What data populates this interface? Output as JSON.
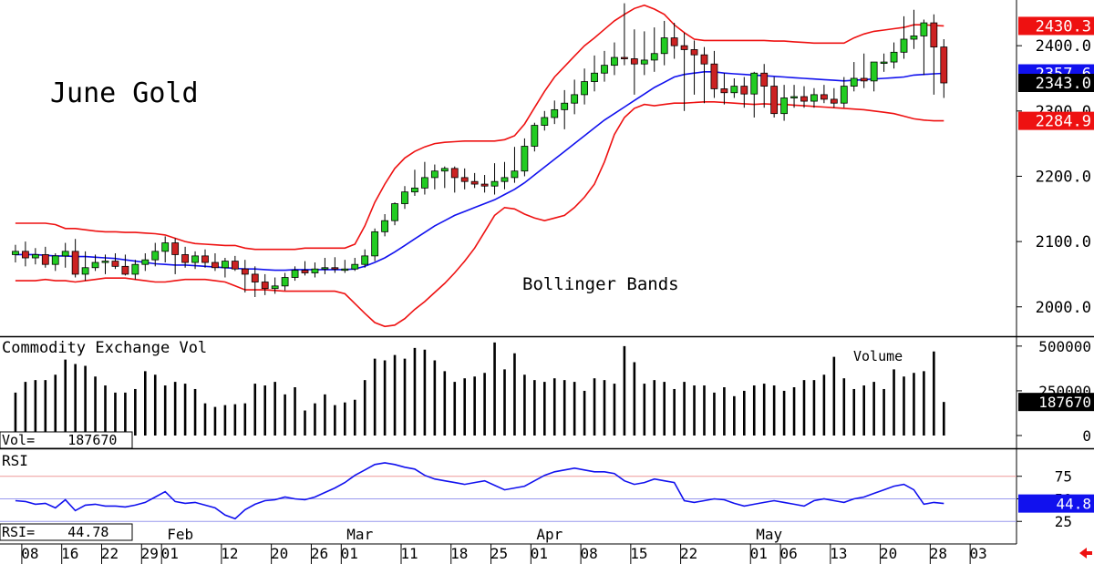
{
  "colors": {
    "up": "#22cc22",
    "down": "#cc2222",
    "band": "#ee1111",
    "ma": "#1111ee",
    "rsi": "#1111ee",
    "axis": "#000000",
    "ref75": "#ee9999",
    "ref50": "#9999ee",
    "ref25": "#9999ee"
  },
  "price_panel": {
    "title": "June Gold",
    "annotation": "Bollinger Bands",
    "yticks": [
      "2000.0",
      "2100.0",
      "2200.0",
      "2300.0",
      "2400.0"
    ],
    "ytick_values": [
      2000,
      2100,
      2200,
      2300,
      2400
    ],
    "tags": [
      {
        "text": "2430.3",
        "value": 2430.3,
        "bg": "#ee1111",
        "fg": "#ffffff"
      },
      {
        "text": "2357.6",
        "value": 2357.6,
        "bg": "#1111ee",
        "fg": "#ffffff"
      },
      {
        "text": "2343.0",
        "value": 2343.0,
        "bg": "#000000",
        "fg": "#ffffff"
      },
      {
        "text": "2284.9",
        "value": 2284.9,
        "bg": "#ee1111",
        "fg": "#ffffff"
      }
    ]
  },
  "volume_panel": {
    "title": "Commodity Exchange Vol",
    "label": "Volume",
    "readout": "Vol=    187670",
    "yticks": [
      "0",
      "250000",
      "500000"
    ],
    "ytick_values": [
      0,
      250000,
      500000
    ],
    "tag": {
      "text": "187670",
      "value": 187670
    }
  },
  "rsi_panel": {
    "title": "RSI",
    "readout": "RSI=    44.78",
    "yticks": [
      "25",
      "50",
      "75"
    ],
    "ytick_values": [
      25,
      50,
      75
    ],
    "tag": {
      "text": "44.8",
      "value": 44.8
    }
  },
  "xaxis": {
    "day_labels": [
      "08",
      "16",
      "22",
      "29",
      "01",
      "12",
      "20",
      "26",
      "01",
      "11",
      "18",
      "25",
      "01",
      "08",
      "15",
      "22",
      "01",
      "06",
      "13",
      "20",
      "28",
      "03"
    ],
    "day_label_index": [
      2,
      6,
      10,
      14,
      16,
      22,
      27,
      31,
      34,
      40,
      45,
      49,
      53,
      58,
      63,
      68,
      75,
      78,
      83,
      88,
      93,
      97
    ],
    "month_labels": [
      "Feb",
      "Mar",
      "Apr",
      "May"
    ],
    "month_label_index": [
      16,
      34,
      53,
      75
    ]
  },
  "chart_data": [
    {
      "type": "candlestick",
      "title": "June Gold",
      "annotation": "Bollinger Bands",
      "ylim": [
        1955,
        2470
      ],
      "x_index": [
        1,
        2,
        3,
        4,
        5,
        6,
        7,
        8,
        9,
        10,
        11,
        12,
        13,
        14,
        15,
        16,
        17,
        18,
        19,
        20,
        21,
        22,
        23,
        24,
        25,
        26,
        27,
        28,
        29,
        30,
        31,
        32,
        33,
        34,
        35,
        36,
        37,
        38,
        39,
        40,
        41,
        42,
        43,
        44,
        45,
        46,
        47,
        48,
        49,
        50,
        51,
        52,
        53,
        54,
        55,
        56,
        57,
        58,
        59,
        60,
        61,
        62,
        63,
        64,
        65,
        66,
        67,
        68,
        69,
        70,
        71,
        72,
        73,
        74,
        75,
        76,
        77,
        78,
        79,
        80,
        81,
        82,
        83,
        84,
        85,
        86,
        87,
        88,
        89,
        90,
        91,
        92,
        93,
        94
      ],
      "open": [
        2080,
        2085,
        2075,
        2080,
        2065,
        2078,
        2085,
        2050,
        2060,
        2068,
        2070,
        2062,
        2050,
        2065,
        2072,
        2085,
        2098,
        2080,
        2068,
        2078,
        2068,
        2060,
        2070,
        2058,
        2050,
        2038,
        2028,
        2032,
        2045,
        2056,
        2052,
        2058,
        2060,
        2058,
        2058,
        2065,
        2078,
        2115,
        2132,
        2158,
        2176,
        2182,
        2198,
        2208,
        2212,
        2198,
        2192,
        2188,
        2185,
        2192,
        2198,
        2208,
        2246,
        2278,
        2290,
        2302,
        2312,
        2325,
        2345,
        2358,
        2370,
        2382,
        2380,
        2372,
        2378,
        2388,
        2412,
        2400,
        2394,
        2386,
        2372,
        2334,
        2328,
        2338,
        2326,
        2358,
        2338,
        2296,
        2320,
        2322,
        2315,
        2325,
        2318,
        2312,
        2338,
        2350,
        2346,
        2375,
        2375,
        2390,
        2410,
        2415,
        2435,
        2398
      ],
      "high": [
        2095,
        2100,
        2090,
        2092,
        2082,
        2098,
        2104,
        2085,
        2080,
        2080,
        2082,
        2080,
        2072,
        2082,
        2098,
        2108,
        2105,
        2092,
        2085,
        2088,
        2082,
        2075,
        2078,
        2072,
        2062,
        2050,
        2045,
        2052,
        2062,
        2070,
        2068,
        2075,
        2076,
        2072,
        2075,
        2088,
        2120,
        2142,
        2160,
        2185,
        2210,
        2222,
        2218,
        2215,
        2215,
        2212,
        2205,
        2202,
        2220,
        2222,
        2245,
        2258,
        2282,
        2300,
        2316,
        2332,
        2348,
        2365,
        2385,
        2392,
        2405,
        2465,
        2425,
        2422,
        2428,
        2438,
        2435,
        2420,
        2408,
        2398,
        2392,
        2358,
        2350,
        2352,
        2360,
        2372,
        2352,
        2340,
        2340,
        2338,
        2335,
        2340,
        2335,
        2352,
        2375,
        2388,
        2372,
        2388,
        2405,
        2445,
        2455,
        2440,
        2448,
        2410
      ],
      "low": [
        2068,
        2062,
        2065,
        2060,
        2055,
        2060,
        2045,
        2040,
        2055,
        2050,
        2058,
        2048,
        2042,
        2055,
        2062,
        2068,
        2050,
        2060,
        2058,
        2060,
        2055,
        2045,
        2055,
        2022,
        2015,
        2018,
        2020,
        2025,
        2040,
        2048,
        2045,
        2050,
        2052,
        2052,
        2055,
        2060,
        2070,
        2108,
        2125,
        2150,
        2170,
        2172,
        2180,
        2182,
        2175,
        2180,
        2182,
        2175,
        2172,
        2180,
        2190,
        2200,
        2238,
        2270,
        2280,
        2272,
        2295,
        2310,
        2330,
        2345,
        2355,
        2370,
        2325,
        2355,
        2360,
        2370,
        2380,
        2300,
        2325,
        2312,
        2320,
        2310,
        2320,
        2305,
        2290,
        2305,
        2290,
        2285,
        2305,
        2305,
        2305,
        2312,
        2305,
        2305,
        2330,
        2335,
        2330,
        2360,
        2365,
        2380,
        2395,
        2355,
        2325,
        2320
      ],
      "close": [
        2085,
        2075,
        2080,
        2065,
        2078,
        2085,
        2050,
        2060,
        2068,
        2070,
        2062,
        2050,
        2065,
        2072,
        2085,
        2098,
        2080,
        2068,
        2078,
        2068,
        2060,
        2070,
        2058,
        2050,
        2038,
        2028,
        2032,
        2045,
        2056,
        2052,
        2058,
        2060,
        2058,
        2058,
        2065,
        2078,
        2115,
        2132,
        2158,
        2176,
        2182,
        2198,
        2208,
        2212,
        2198,
        2192,
        2188,
        2185,
        2192,
        2198,
        2208,
        2246,
        2278,
        2290,
        2302,
        2312,
        2325,
        2345,
        2358,
        2370,
        2382,
        2380,
        2372,
        2378,
        2388,
        2412,
        2400,
        2394,
        2386,
        2372,
        2334,
        2328,
        2338,
        2326,
        2358,
        2338,
        2296,
        2320,
        2322,
        2315,
        2325,
        2318,
        2312,
        2338,
        2350,
        2346,
        2375,
        2375,
        2390,
        2410,
        2415,
        2435,
        2398,
        2343
      ],
      "upper_band": [
        2128,
        2128,
        2128,
        2128,
        2126,
        2120,
        2120,
        2118,
        2116,
        2115,
        2115,
        2114,
        2114,
        2113,
        2112,
        2110,
        2105,
        2100,
        2097,
        2096,
        2095,
        2094,
        2094,
        2090,
        2088,
        2088,
        2088,
        2088,
        2088,
        2090,
        2090,
        2090,
        2090,
        2090,
        2096,
        2124,
        2160,
        2188,
        2212,
        2228,
        2238,
        2245,
        2250,
        2252,
        2253,
        2254,
        2254,
        2254,
        2254,
        2256,
        2262,
        2280,
        2305,
        2330,
        2352,
        2368,
        2384,
        2400,
        2412,
        2425,
        2438,
        2448,
        2457,
        2462,
        2456,
        2448,
        2432,
        2420,
        2410,
        2408,
        2408,
        2408,
        2408,
        2408,
        2408,
        2408,
        2407,
        2407,
        2406,
        2405,
        2404,
        2404,
        2404,
        2404,
        2412,
        2418,
        2422,
        2424,
        2426,
        2428,
        2432,
        2432,
        2431,
        2430.3
      ],
      "middle_band": [
        2080,
        2080,
        2080,
        2079,
        2078,
        2078,
        2077,
        2077,
        2076,
        2075,
        2074,
        2072,
        2070,
        2068,
        2066,
        2065,
        2064,
        2064,
        2063,
        2062,
        2061,
        2060,
        2059,
        2058,
        2058,
        2057,
        2056,
        2056,
        2057,
        2057,
        2057,
        2057,
        2057,
        2057,
        2058,
        2062,
        2068,
        2075,
        2084,
        2094,
        2104,
        2114,
        2124,
        2132,
        2140,
        2146,
        2152,
        2158,
        2164,
        2172,
        2180,
        2190,
        2202,
        2214,
        2226,
        2238,
        2250,
        2262,
        2274,
        2286,
        2296,
        2306,
        2316,
        2326,
        2336,
        2344,
        2352,
        2356,
        2358,
        2360,
        2360,
        2358,
        2357,
        2356,
        2355,
        2354,
        2353,
        2352,
        2351,
        2350,
        2349,
        2348,
        2347,
        2346,
        2347,
        2348,
        2349,
        2350,
        2351,
        2352,
        2355,
        2356,
        2357,
        2357.6
      ],
      "lower_band": [
        2040,
        2040,
        2040,
        2042,
        2040,
        2040,
        2038,
        2040,
        2042,
        2044,
        2044,
        2044,
        2042,
        2040,
        2038,
        2038,
        2040,
        2042,
        2042,
        2042,
        2040,
        2038,
        2032,
        2026,
        2026,
        2026,
        2025,
        2024,
        2024,
        2024,
        2024,
        2024,
        2024,
        2020,
        2005,
        1990,
        1976,
        1970,
        1972,
        1982,
        1996,
        2008,
        2022,
        2036,
        2052,
        2070,
        2090,
        2115,
        2140,
        2152,
        2150,
        2142,
        2136,
        2132,
        2136,
        2140,
        2152,
        2168,
        2188,
        2222,
        2264,
        2290,
        2304,
        2310,
        2308,
        2310,
        2312,
        2312,
        2313,
        2314,
        2314,
        2313,
        2312,
        2311,
        2310,
        2311,
        2310,
        2310,
        2309,
        2308,
        2307,
        2306,
        2305,
        2304,
        2303,
        2302,
        2300,
        2298,
        2296,
        2292,
        2288,
        2286,
        2285,
        2284.9
      ]
    },
    {
      "type": "bar",
      "title": "Commodity Exchange Vol",
      "ylim": [
        0,
        540000
      ],
      "x_index": [
        1,
        2,
        3,
        4,
        5,
        6,
        7,
        8,
        9,
        10,
        11,
        12,
        13,
        14,
        15,
        16,
        17,
        18,
        19,
        20,
        21,
        22,
        23,
        24,
        25,
        26,
        27,
        28,
        29,
        30,
        31,
        32,
        33,
        34,
        35,
        36,
        37,
        38,
        39,
        40,
        41,
        42,
        43,
        44,
        45,
        46,
        47,
        48,
        49,
        50,
        51,
        52,
        53,
        54,
        55,
        56,
        57,
        58,
        59,
        60,
        61,
        62,
        63,
        64,
        65,
        66,
        67,
        68,
        69,
        70,
        71,
        72,
        73,
        74,
        75,
        76,
        77,
        78,
        79,
        80,
        81,
        82,
        83,
        84,
        85,
        86,
        87,
        88,
        89,
        90,
        91,
        92,
        93,
        94
      ],
      "values": [
        240000,
        300000,
        310000,
        310000,
        340000,
        425000,
        400000,
        390000,
        330000,
        280000,
        240000,
        240000,
        260000,
        360000,
        340000,
        280000,
        300000,
        290000,
        260000,
        180000,
        160000,
        170000,
        175000,
        180000,
        290000,
        280000,
        300000,
        230000,
        270000,
        140000,
        180000,
        230000,
        170000,
        185000,
        200000,
        310000,
        430000,
        420000,
        450000,
        430000,
        490000,
        480000,
        420000,
        360000,
        300000,
        320000,
        330000,
        350000,
        520000,
        370000,
        460000,
        340000,
        310000,
        300000,
        320000,
        310000,
        300000,
        250000,
        320000,
        310000,
        290000,
        500000,
        410000,
        290000,
        310000,
        300000,
        260000,
        300000,
        280000,
        280000,
        240000,
        270000,
        220000,
        250000,
        280000,
        290000,
        280000,
        250000,
        270000,
        310000,
        310000,
        340000,
        440000,
        320000,
        260000,
        280000,
        300000,
        260000,
        370000,
        330000,
        350000,
        360000,
        470000,
        187670
      ]
    },
    {
      "type": "line",
      "title": "RSI",
      "ylim": [
        0,
        105
      ],
      "reference_lines": [
        75,
        50,
        25
      ],
      "x_index": [
        1,
        2,
        3,
        4,
        5,
        6,
        7,
        8,
        9,
        10,
        11,
        12,
        13,
        14,
        15,
        16,
        17,
        18,
        19,
        20,
        21,
        22,
        23,
        24,
        25,
        26,
        27,
        28,
        29,
        30,
        31,
        32,
        33,
        34,
        35,
        36,
        37,
        38,
        39,
        40,
        41,
        42,
        43,
        44,
        45,
        46,
        47,
        48,
        49,
        50,
        51,
        52,
        53,
        54,
        55,
        56,
        57,
        58,
        59,
        60,
        61,
        62,
        63,
        64,
        65,
        66,
        67,
        68,
        69,
        70,
        71,
        72,
        73,
        74,
        75,
        76,
        77,
        78,
        79,
        80,
        81,
        82,
        83,
        84,
        85,
        86,
        87,
        88,
        89,
        90,
        91,
        92,
        93,
        94
      ],
      "values": [
        48,
        47,
        44,
        45,
        40,
        49,
        37,
        43,
        44,
        42,
        42,
        41,
        43,
        46,
        52,
        58,
        47,
        45,
        46,
        43,
        40,
        32,
        28,
        38,
        44,
        48,
        49,
        52,
        50,
        49,
        52,
        57,
        62,
        68,
        76,
        82,
        88,
        90,
        88,
        85,
        83,
        76,
        72,
        70,
        68,
        66,
        68,
        70,
        65,
        60,
        62,
        64,
        70,
        76,
        80,
        82,
        84,
        82,
        80,
        80,
        78,
        70,
        66,
        68,
        72,
        70,
        68,
        48,
        46,
        48,
        50,
        49,
        45,
        42,
        44,
        46,
        48,
        46,
        44,
        42,
        48,
        50,
        48,
        46,
        50,
        52,
        56,
        60,
        64,
        66,
        60,
        44,
        46,
        44.78
      ]
    }
  ]
}
